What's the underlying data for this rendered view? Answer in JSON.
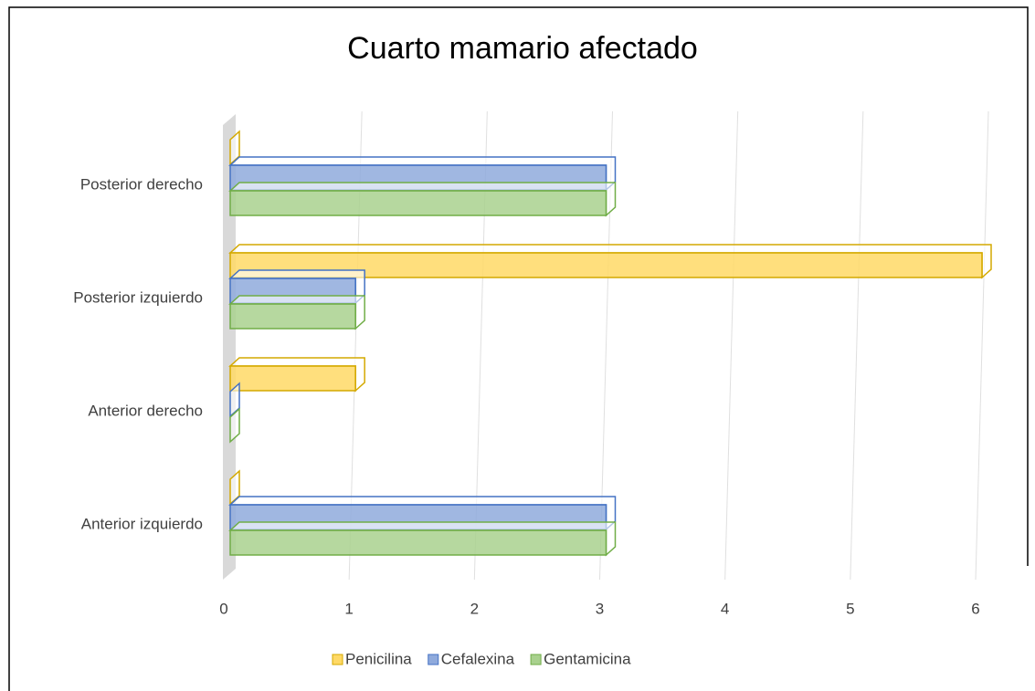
{
  "chart_data": {
    "type": "bar3d_horizontal",
    "title": "Cuarto mamario afectado",
    "categories": [
      "Anterior izquierdo",
      "Anterior derecho",
      "Posterior izquierdo",
      "Posterior derecho"
    ],
    "series": [
      {
        "name": "Penicilina",
        "color": "#ffd966",
        "values": [
          0,
          1,
          6,
          0
        ]
      },
      {
        "name": "Cefalexina",
        "color": "#8faadc",
        "values": [
          3,
          0,
          1,
          3
        ]
      },
      {
        "name": "Gentamicina",
        "color": "#a9d18e",
        "values": [
          3,
          0,
          1,
          3
        ]
      }
    ],
    "xlim": [
      0,
      6
    ],
    "xticks": [
      0,
      1,
      2,
      3,
      4,
      5,
      6
    ],
    "grid": true,
    "legend": "bottom"
  }
}
